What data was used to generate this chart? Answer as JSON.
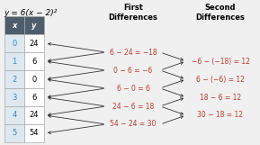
{
  "title": "y = 6(x − 2)²",
  "table_x": [
    "0",
    "1",
    "2",
    "3",
    "4",
    "5"
  ],
  "table_y": [
    "24",
    "6",
    "0",
    "6",
    "24",
    "54"
  ],
  "first_diff_labels": [
    "6 − 24 = −18",
    "0 − 6 = −6",
    "6 − 0 = 6",
    "24 − 6 = 18",
    "54 − 24 = 30"
  ],
  "second_diff_labels": [
    "−6 − (−18) = 12",
    "6 − (−6) = 12",
    "18 − 6 = 12",
    "30 − 18 = 12"
  ],
  "header_first": "First\nDifferences",
  "header_second": "Second\nDifferences",
  "bg_color": "#f0f0f0",
  "table_header_bg": "#4d5d6b",
  "table_header_text": "#ffffff",
  "table_x_color": "#2e86c1",
  "table_y_color": "#000000",
  "table_cell_bg": "#ffffff",
  "table_border_color": "#aaaaaa",
  "diff_text_color": "#c0392b",
  "arrow_color": "#333333",
  "title_color": "#000000",
  "header_fontsize": 6.0,
  "cell_fontsize": 6.0,
  "diff_fontsize": 5.5
}
